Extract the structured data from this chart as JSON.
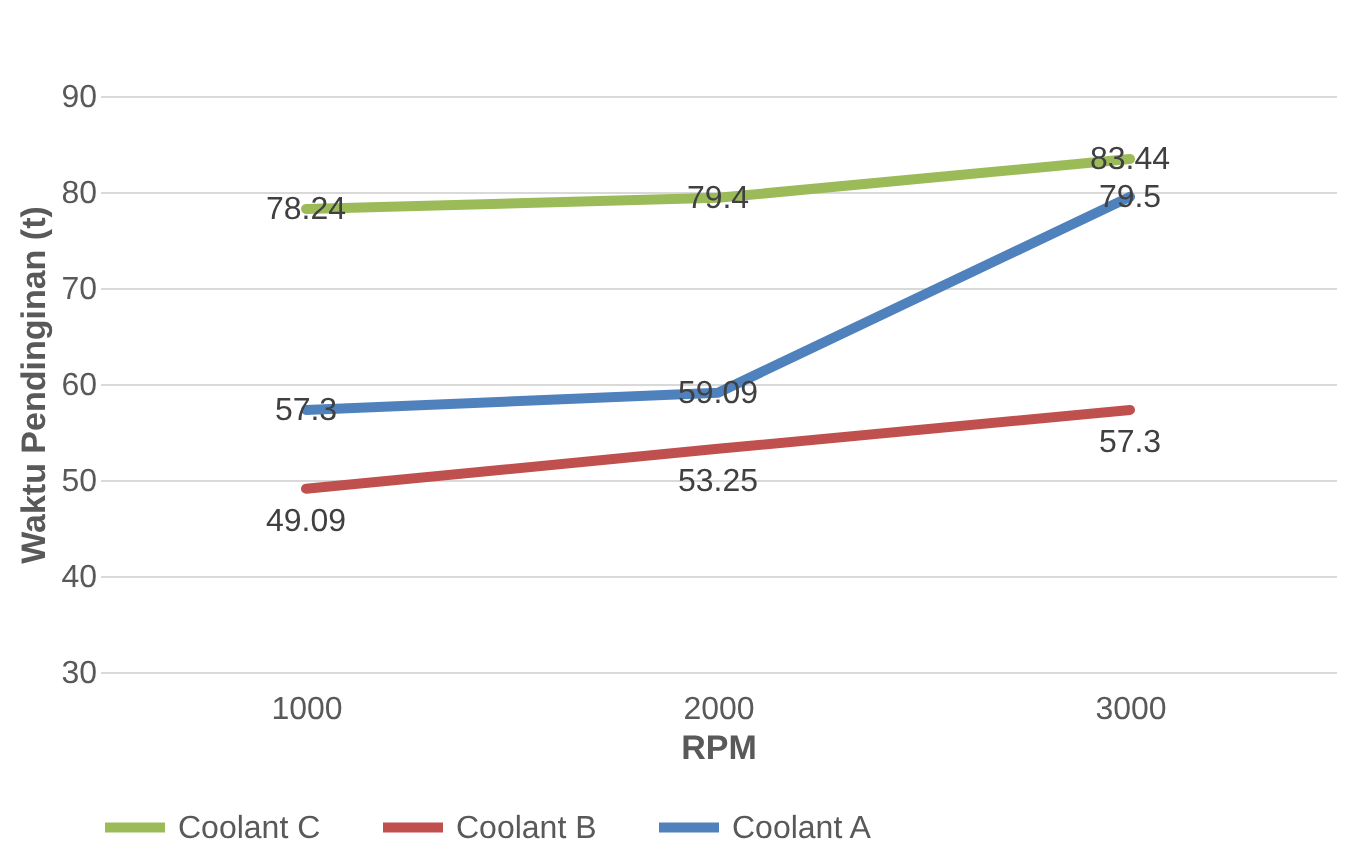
{
  "chart_data": {
    "type": "line",
    "xlabel": "RPM",
    "ylabel": "Waktu Pendinginan (t)",
    "categories": [
      "1000",
      "2000",
      "3000"
    ],
    "series": [
      {
        "name": "Coolant C",
        "color": "#9bbb59",
        "values": [
          78.24,
          79.4,
          83.44
        ]
      },
      {
        "name": "Coolant B",
        "color": "#c0504d",
        "values": [
          49.09,
          53.25,
          57.3
        ]
      },
      {
        "name": "Coolant A",
        "color": "#4f81bd",
        "values": [
          57.3,
          59.09,
          79.5
        ]
      }
    ],
    "ylim": [
      30,
      90
    ],
    "yticks": [
      30,
      40,
      50,
      60,
      70,
      80,
      90
    ],
    "grid": "y",
    "legend": "bottom",
    "data_labels": true,
    "marker": "none",
    "line_style": "solid"
  }
}
